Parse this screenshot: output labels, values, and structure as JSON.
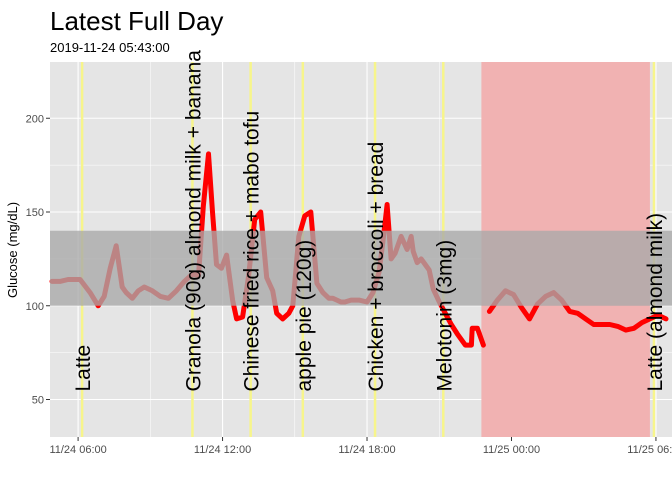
{
  "chart_data": {
    "type": "line",
    "title": "Latest Full Day",
    "subtitle": "2019-11-24 05:43:00",
    "ylabel": "Glucose (mg/dL)",
    "xlabel": "",
    "ylim": [
      30,
      230
    ],
    "xlim": [
      "2019-11-24 04:50",
      "2019-11-25 06:40"
    ],
    "y_ticks": [
      50,
      100,
      150,
      200
    ],
    "x_ticks": [
      {
        "time": "2019-11-24 06:00",
        "label": "11/24 06:00"
      },
      {
        "time": "2019-11-24 12:00",
        "label": "11/24 12:00"
      },
      {
        "time": "2019-11-24 18:00",
        "label": "11/24 18:00"
      },
      {
        "time": "2019-11-25 00:00",
        "label": "11/25 00:00"
      },
      {
        "time": "2019-11-25 06:00",
        "label": "11/25 06:00"
      }
    ],
    "grid": true,
    "target_range": {
      "low": 100,
      "high": 140
    },
    "sleep_period": {
      "start": "2019-11-24 22:45",
      "end": "2019-11-25 05:45"
    },
    "colors": {
      "panel_background": "#e5e5e5",
      "grid": "#ffffff",
      "target_band": "#a9a9a9",
      "sleep_band": "#f1b2b2",
      "glucose_line": "#ff0000",
      "glucose_line_in_range": "#c0504d",
      "event_line": "#f7f58b"
    },
    "events": [
      {
        "time": "2019-11-24 06:10",
        "label": "Latte"
      },
      {
        "time": "2019-11-24 10:45",
        "label": "Granola (90g) almond milk + banana"
      },
      {
        "time": "2019-11-24 13:10",
        "label": "Chinese fried rice + mabo tofu"
      },
      {
        "time": "2019-11-24 15:20",
        "label": "apple pie (120g)"
      },
      {
        "time": "2019-11-24 18:20",
        "label": "Chicken + broccoli + bread"
      },
      {
        "time": "2019-11-24 21:10",
        "label": "Melotonin (3mg)"
      },
      {
        "time": "2019-11-25 05:55",
        "label": "Latte (almond milk)"
      }
    ],
    "series": [
      {
        "x": [
          "2019-11-24 04:55",
          "2019-11-24 05:15",
          "2019-11-24 05:35",
          "2019-11-24 06:05",
          "2019-11-24 06:30",
          "2019-11-24 06:50",
          "2019-11-24 07:05",
          "2019-11-24 07:20",
          "2019-11-24 07:35",
          "2019-11-24 07:50",
          "2019-11-24 08:00",
          "2019-11-24 08:15",
          "2019-11-24 08:30",
          "2019-11-24 08:45",
          "2019-11-24 09:05",
          "2019-11-24 09:25",
          "2019-11-24 09:45",
          "2019-11-24 10:05",
          "2019-11-24 10:25",
          "2019-11-24 10:45",
          "2019-11-24 11:00",
          "2019-11-24 11:12",
          "2019-11-24 11:25",
          "2019-11-24 11:35",
          "2019-11-24 11:45",
          "2019-11-24 11:57",
          "2019-11-24 12:10",
          "2019-11-24 12:25",
          "2019-11-24 12:35",
          "2019-11-24 12:50",
          "2019-11-24 13:05",
          "2019-11-24 13:20",
          "2019-11-24 13:35",
          "2019-11-24 13:50",
          "2019-11-24 14:05",
          "2019-11-24 14:15",
          "2019-11-24 14:30",
          "2019-11-24 14:45",
          "2019-11-24 14:55",
          "2019-11-24 15:10",
          "2019-11-24 15:25",
          "2019-11-24 15:40",
          "2019-11-24 15:55",
          "2019-11-24 16:10",
          "2019-11-24 16:25",
          "2019-11-24 16:35",
          "2019-11-24 16:45",
          "2019-11-24 16:55",
          "2019-11-24 17:05",
          "2019-11-24 17:20",
          "2019-11-24 17:40",
          "2019-11-24 18:00",
          "2019-11-24 18:15",
          "2019-11-24 18:30",
          "2019-11-24 18:40",
          "2019-11-24 18:50",
          "2019-11-24 19:00",
          "2019-11-24 19:10",
          "2019-11-24 19:25",
          "2019-11-24 19:40",
          "2019-11-24 19:50",
          "2019-11-24 19:55",
          "2019-11-24 20:05",
          "2019-11-24 20:15",
          "2019-11-24 20:25",
          "2019-11-24 20:35",
          "2019-11-24 20:45",
          "2019-11-24 21:00",
          "2019-11-24 21:15",
          "2019-11-24 21:30",
          "2019-11-24 21:45",
          "2019-11-24 22:05",
          "2019-11-24 22:20",
          "2019-11-24 22:22",
          "2019-11-24 22:35",
          "2019-11-24 22:50"
        ],
        "values": [
          113,
          113,
          114,
          114,
          107,
          100,
          105,
          120,
          132,
          110,
          107,
          104,
          108,
          110,
          108,
          105,
          104,
          108,
          113,
          117,
          116,
          153,
          181,
          150,
          122,
          120,
          127,
          103,
          93,
          94,
          116,
          146,
          150,
          115,
          108,
          96,
          93,
          96,
          100,
          137,
          148,
          150,
          112,
          107,
          104,
          104,
          103,
          102,
          102,
          103,
          103,
          102,
          107,
          118,
          135,
          154,
          125,
          128,
          137,
          130,
          137,
          129,
          123,
          125,
          122,
          119,
          109,
          102,
          96,
          90,
          85,
          79,
          79,
          88,
          88,
          79
        ]
      },
      {
        "x": [
          "2019-11-24 23:05",
          "2019-11-24 23:25",
          "2019-11-24 23:45",
          "2019-11-25 00:05",
          "2019-11-25 00:25",
          "2019-11-25 00:45",
          "2019-11-25 01:05",
          "2019-11-25 01:25",
          "2019-11-25 01:45",
          "2019-11-25 02:05",
          "2019-11-25 02:25",
          "2019-11-25 02:45",
          "2019-11-25 03:05",
          "2019-11-25 03:25",
          "2019-11-25 03:45",
          "2019-11-25 04:05",
          "2019-11-25 04:25",
          "2019-11-25 04:45",
          "2019-11-25 05:05",
          "2019-11-25 05:25",
          "2019-11-25 05:45",
          "2019-11-25 06:05",
          "2019-11-25 06:25"
        ],
        "values": [
          97,
          103,
          108,
          106,
          99,
          93,
          101,
          105,
          107,
          103,
          97,
          96,
          93,
          90,
          90,
          90,
          89,
          87,
          88,
          91,
          93,
          95,
          93
        ]
      }
    ]
  }
}
